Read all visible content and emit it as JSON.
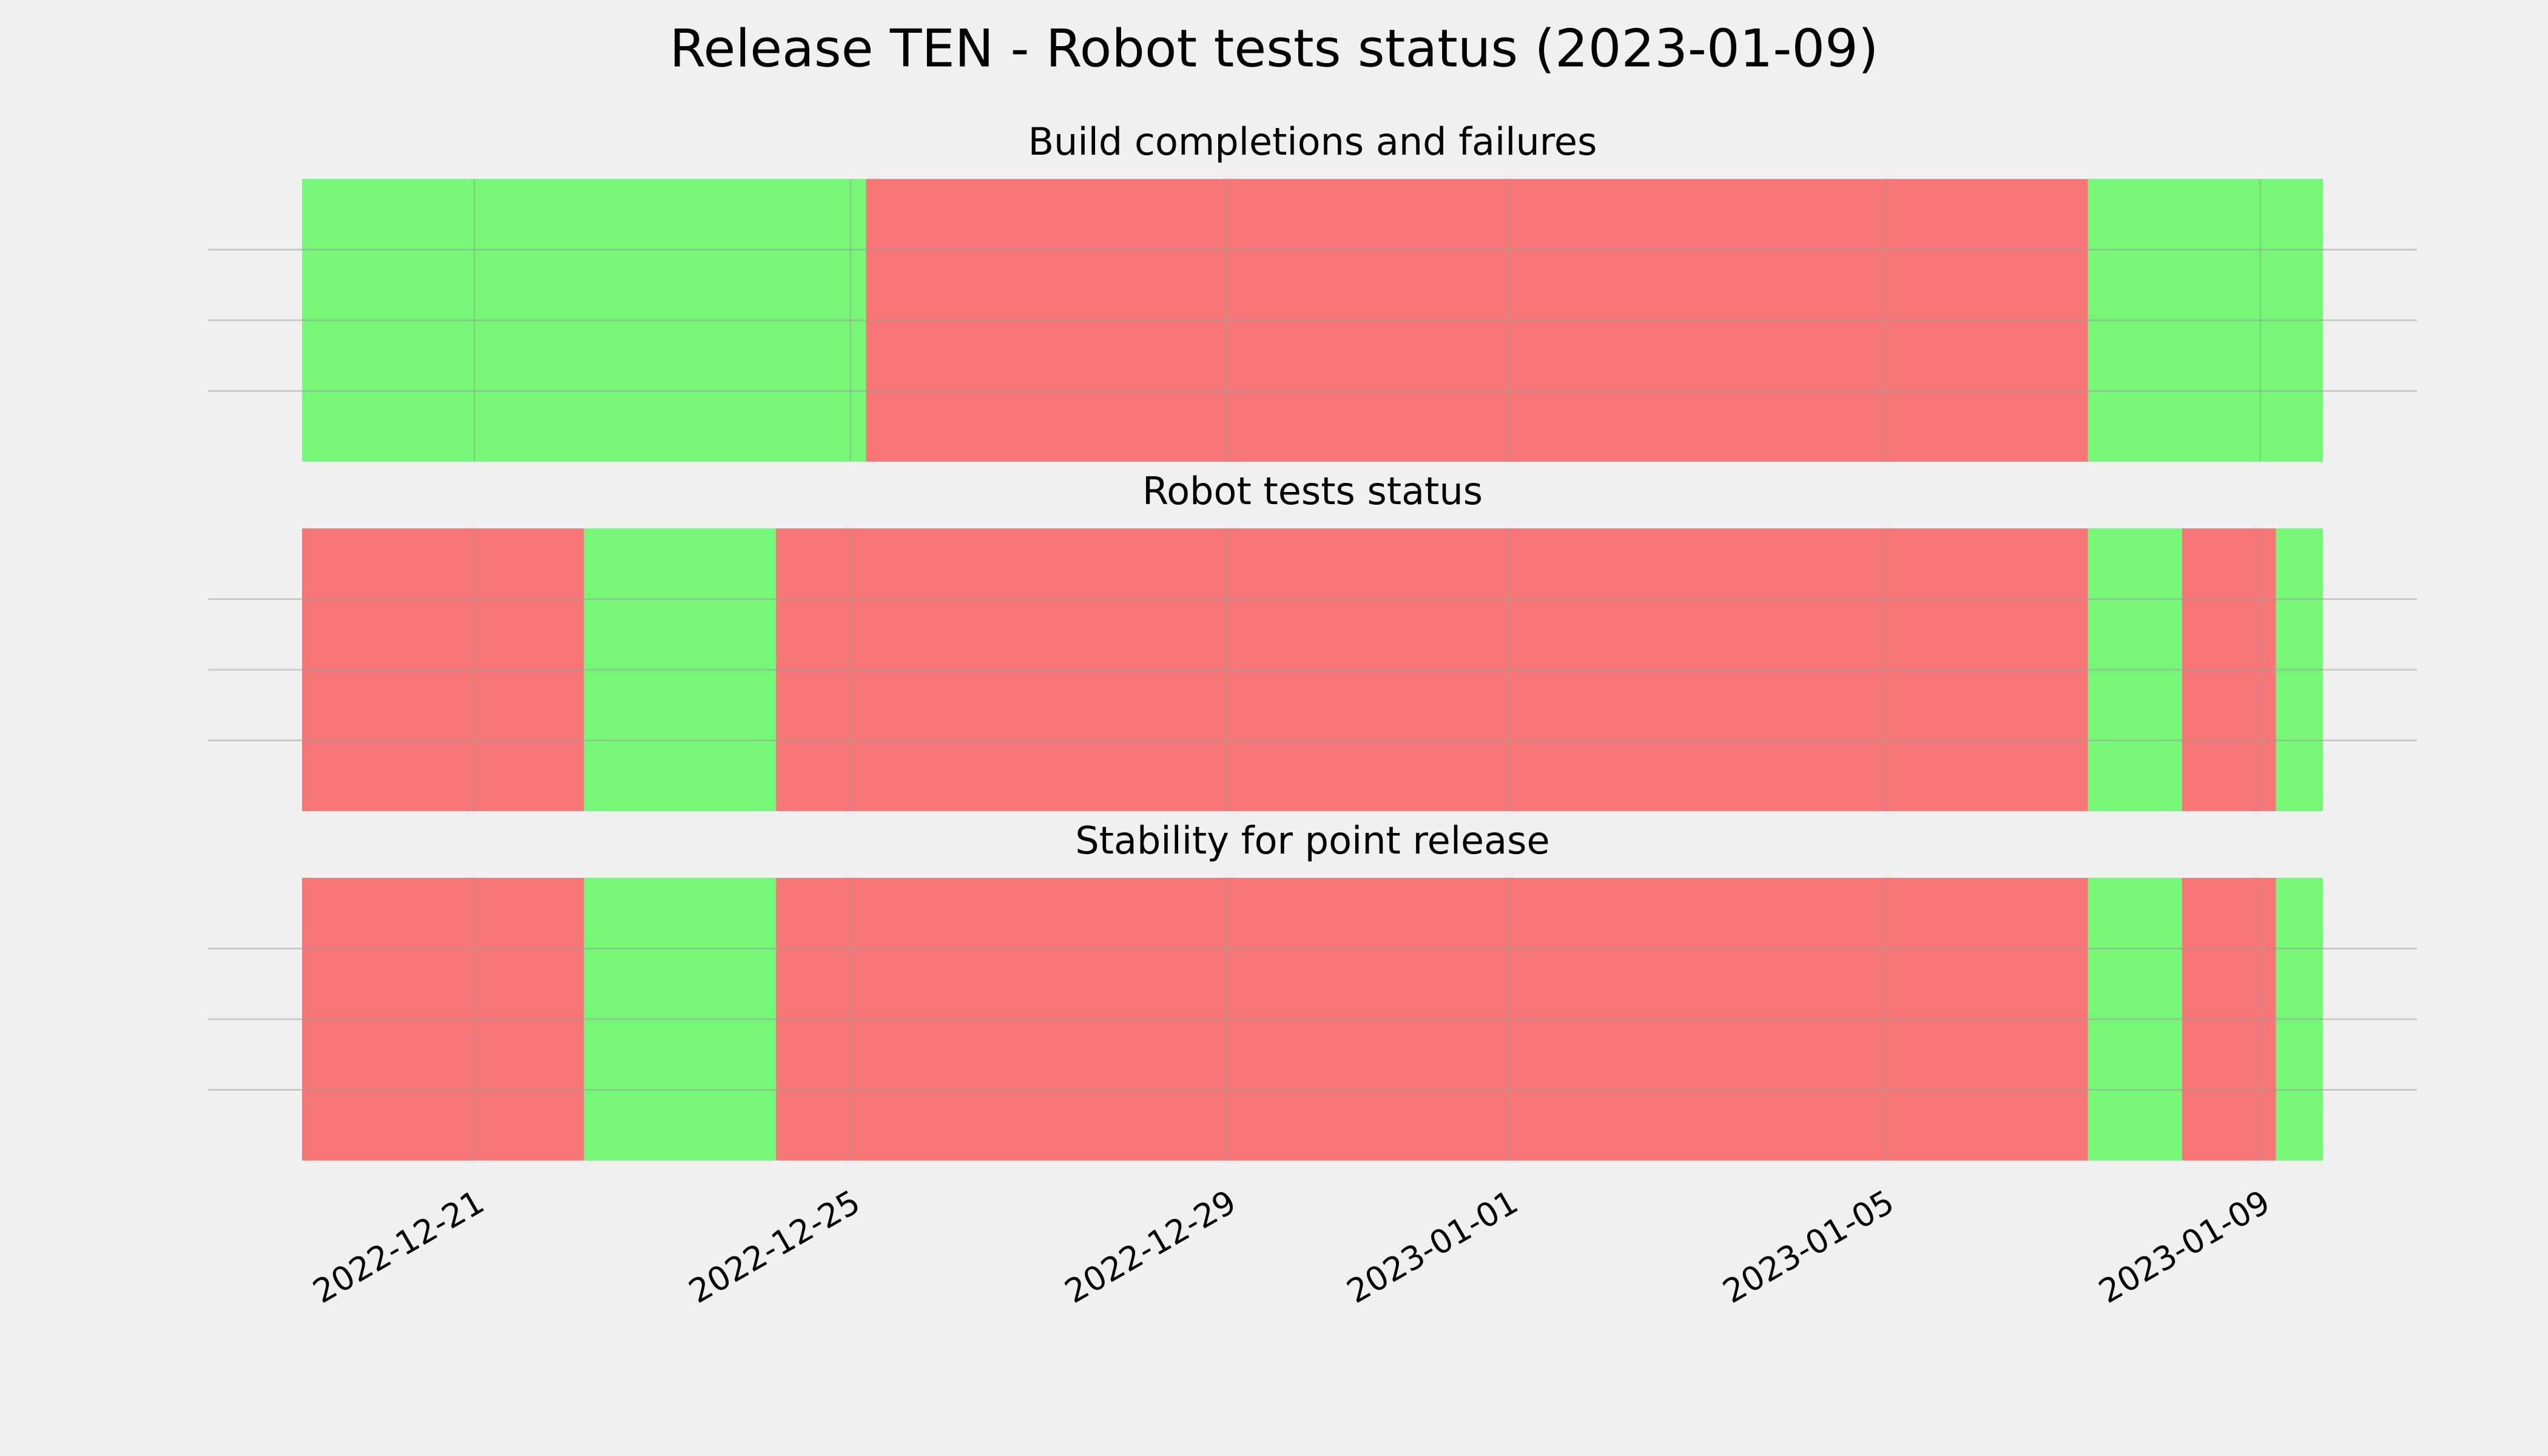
{
  "title": "Release TEN - Robot tests status (2023-01-09)",
  "chart_data": [
    {
      "type": "span",
      "title": "Build completions and failures",
      "spans": [
        {
          "start": "2022-12-19T04:00",
          "end": "2022-12-25T04:00",
          "color": "#77f777"
        },
        {
          "start": "2022-12-25T04:00",
          "end": "2023-01-07T04:00",
          "color": "#f77777"
        },
        {
          "start": "2023-01-07T04:00",
          "end": "2023-01-09T16:00",
          "color": "#77f777"
        }
      ],
      "xlim": [
        "2022-12-18T04:00",
        "2023-01-10T16:00"
      ],
      "xticks": [
        "2022-12-21",
        "2022-12-25",
        "2022-12-29",
        "2023-01-01",
        "2023-01-05",
        "2023-01-09"
      ],
      "show_xtick_labels": false,
      "ylim": [
        0,
        1
      ],
      "yticks": [
        0.25,
        0.5,
        0.75
      ],
      "grid": true
    },
    {
      "type": "span",
      "title": "Robot tests status",
      "spans": [
        {
          "start": "2022-12-19T04:00",
          "end": "2022-12-22T04:00",
          "color": "#f77777"
        },
        {
          "start": "2022-12-22T04:00",
          "end": "2022-12-24T05:00",
          "color": "#77f777"
        },
        {
          "start": "2022-12-24T05:00",
          "end": "2023-01-07T04:00",
          "color": "#f77777"
        },
        {
          "start": "2023-01-07T04:00",
          "end": "2023-01-08T04:00",
          "color": "#77f777"
        },
        {
          "start": "2023-01-08T04:00",
          "end": "2023-01-09T04:00",
          "color": "#f77777"
        },
        {
          "start": "2023-01-09T04:00",
          "end": "2023-01-09T16:00",
          "color": "#77f777"
        }
      ],
      "xlim": [
        "2022-12-18T04:00",
        "2023-01-10T16:00"
      ],
      "xticks": [
        "2022-12-21",
        "2022-12-25",
        "2022-12-29",
        "2023-01-01",
        "2023-01-05",
        "2023-01-09"
      ],
      "show_xtick_labels": false,
      "ylim": [
        0,
        1
      ],
      "yticks": [
        0.25,
        0.5,
        0.75
      ],
      "grid": true
    },
    {
      "type": "span",
      "title": "Stability for point release",
      "spans": [
        {
          "start": "2022-12-19T04:00",
          "end": "2022-12-22T04:00",
          "color": "#f77777"
        },
        {
          "start": "2022-12-22T04:00",
          "end": "2022-12-24T05:00",
          "color": "#77f777"
        },
        {
          "start": "2022-12-24T05:00",
          "end": "2023-01-07T04:00",
          "color": "#f77777"
        },
        {
          "start": "2023-01-07T04:00",
          "end": "2023-01-08T04:00",
          "color": "#77f777"
        },
        {
          "start": "2023-01-08T04:00",
          "end": "2023-01-09T04:00",
          "color": "#f77777"
        },
        {
          "start": "2023-01-09T04:00",
          "end": "2023-01-09T16:00",
          "color": "#77f777"
        }
      ],
      "xlim": [
        "2022-12-18T04:00",
        "2023-01-10T16:00"
      ],
      "xticks": [
        "2022-12-21",
        "2022-12-25",
        "2022-12-29",
        "2023-01-01",
        "2023-01-05",
        "2023-01-09"
      ],
      "show_xtick_labels": true,
      "ylim": [
        0,
        1
      ],
      "yticks": [
        0.25,
        0.5,
        0.75
      ],
      "grid": true
    }
  ]
}
